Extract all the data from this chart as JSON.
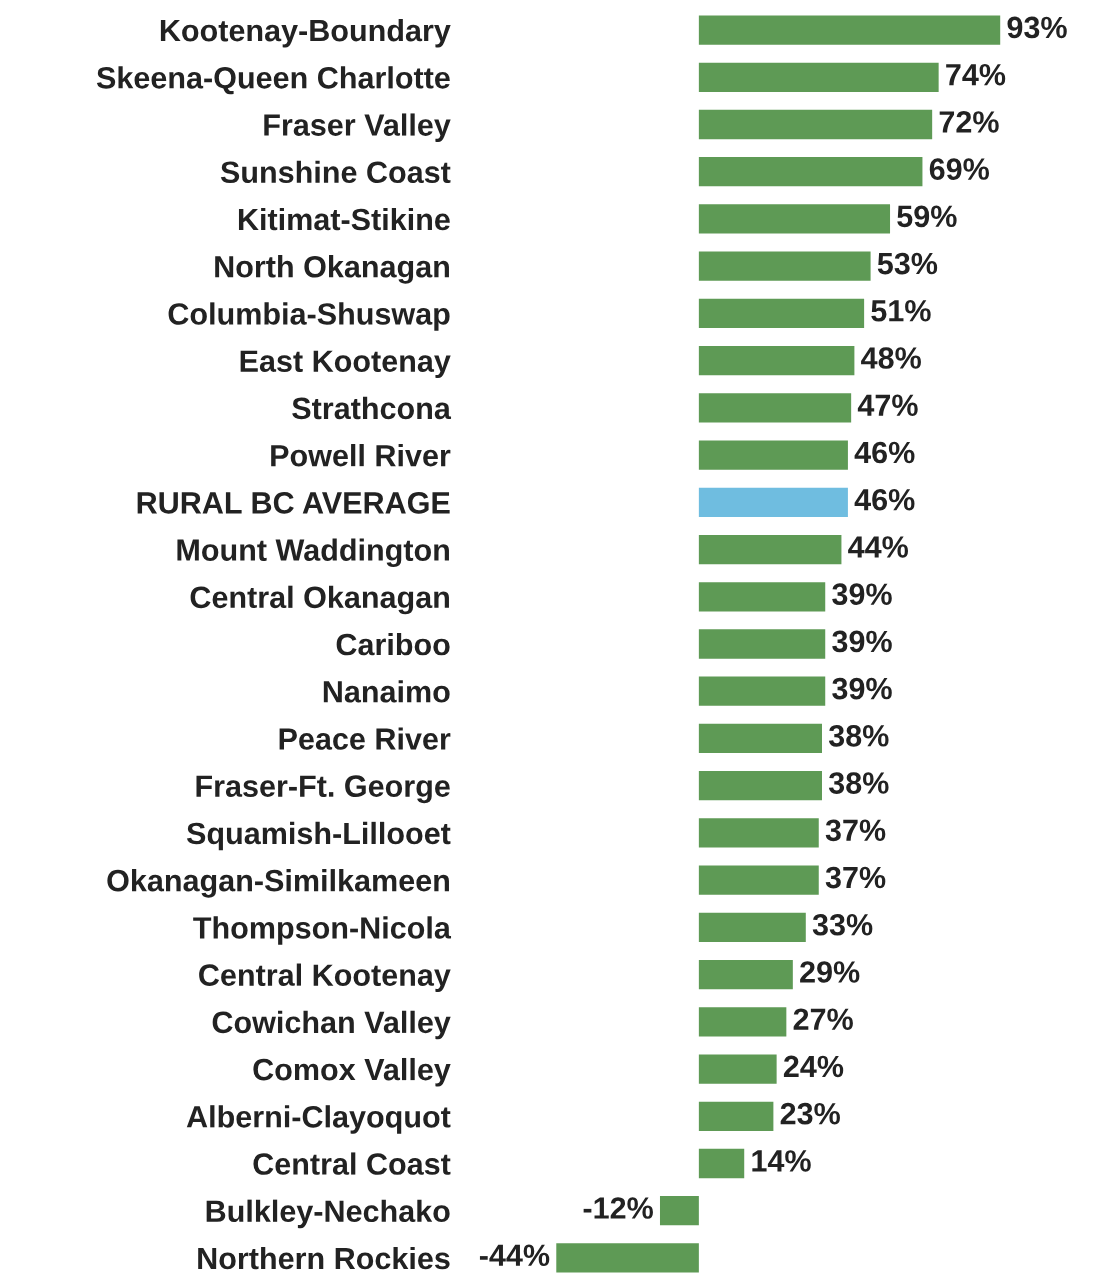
{
  "chart_data": {
    "type": "bar",
    "orientation": "horizontal",
    "categories": [
      "Kootenay-Boundary",
      "Skeena-Queen Charlotte",
      "Fraser Valley",
      "Sunshine Coast",
      "Kitimat-Stikine",
      "North Okanagan",
      "Columbia-Shuswap",
      "East Kootenay",
      "Strathcona",
      "Powell River",
      "RURAL BC AVERAGE",
      "Mount Waddington",
      "Central Okanagan",
      "Cariboo",
      "Nanaimo",
      "Peace River",
      "Fraser-Ft. George",
      "Squamish-Lillooet",
      "Okanagan-Similkameen",
      "Thompson-Nicola",
      "Central Kootenay",
      "Cowichan Valley",
      "Comox Valley",
      "Alberni-Clayoquot",
      "Central Coast",
      "Bulkley-Nechako",
      "Northern Rockies"
    ],
    "values": [
      93,
      74,
      72,
      69,
      59,
      53,
      51,
      48,
      47,
      46,
      46,
      44,
      39,
      39,
      39,
      38,
      38,
      37,
      37,
      33,
      29,
      27,
      24,
      23,
      14,
      -12,
      -44
    ],
    "value_labels": [
      "93%",
      "74%",
      "72%",
      "69%",
      "59%",
      "53%",
      "51%",
      "48%",
      "47%",
      "46%",
      "46%",
      "44%",
      "39%",
      "39%",
      "39%",
      "38%",
      "38%",
      "37%",
      "37%",
      "33%",
      "29%",
      "27%",
      "24%",
      "23%",
      "14%",
      "-12%",
      "-44%"
    ],
    "colors": [
      "#5e9a55",
      "#5e9a55",
      "#5e9a55",
      "#5e9a55",
      "#5e9a55",
      "#5e9a55",
      "#5e9a55",
      "#5e9a55",
      "#5e9a55",
      "#5e9a55",
      "#6fbde0",
      "#5e9a55",
      "#5e9a55",
      "#5e9a55",
      "#5e9a55",
      "#5e9a55",
      "#5e9a55",
      "#5e9a55",
      "#5e9a55",
      "#5e9a55",
      "#5e9a55",
      "#5e9a55",
      "#5e9a55",
      "#5e9a55",
      "#5e9a55",
      "#5e9a55",
      "#5e9a55"
    ],
    "tick_labels": "y",
    "grid": false,
    "legend": false
  }
}
